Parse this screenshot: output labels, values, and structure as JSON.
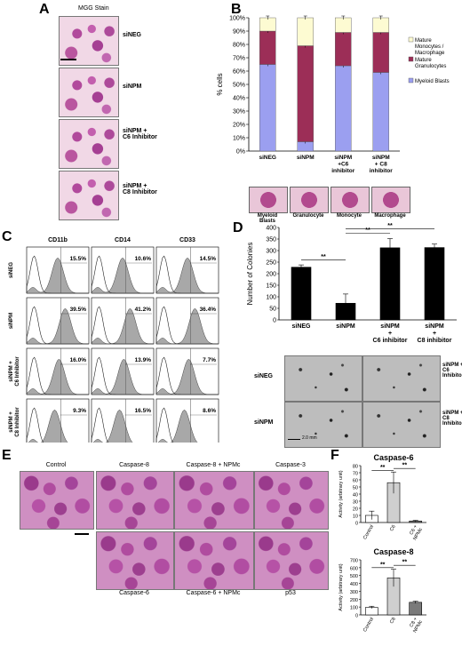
{
  "panelA": {
    "label": "A",
    "title": "MGG Stain",
    "rows": [
      "siNEG",
      "siNPM",
      "siNPM +\nC6 Inhibitor",
      "siNPM +\nC8 Inhibitor"
    ]
  },
  "panelB": {
    "label": "B",
    "thumbs": [
      "Myeloid\nBlasts",
      "Granulocyte",
      "Monocyte",
      "Macrophage"
    ]
  },
  "panelC": {
    "label": "C",
    "columns": [
      "CD11b",
      "CD14",
      "CD33"
    ],
    "rows": [
      "siNEG",
      "siNPM",
      "siNPM +\nC6 Inhibitor",
      "siNPM +\nC8 Inhibitor"
    ],
    "percents": [
      [
        "15.5%",
        "10.6%",
        "14.5%"
      ],
      [
        "39.5%",
        "41.2%",
        "36.4%"
      ],
      [
        "16.0%",
        "13.9%",
        "7.7%"
      ],
      [
        "9.3%",
        "16.5%",
        "8.6%"
      ]
    ]
  },
  "panelD": {
    "label": "D",
    "img_labels": [
      "siNEG",
      "siNPM",
      "siNPM +\nC6\nInhibitor",
      "siNPM +\nC8\nInhibitor"
    ],
    "scale": "2.0 mm"
  },
  "panelE": {
    "label": "E",
    "top": [
      "Control",
      "Caspase-8",
      "Caspase-8 + NPMc",
      "Caspase-3"
    ],
    "bottom": [
      "Caspase-6",
      "Caspase-6 + NPMc",
      "p53"
    ]
  },
  "panelF": {
    "label": "F"
  },
  "chart_data": [
    {
      "type": "bar",
      "panel": "B",
      "ylabel": "% cells",
      "yticks": [
        "0%",
        "10%",
        "20%",
        "30%",
        "40%",
        "50%",
        "60%",
        "70%",
        "80%",
        "90%",
        "100%"
      ],
      "ylim": [
        0,
        100
      ],
      "categories": [
        "siNEG",
        "siNPM",
        "siNPM\n+C6\ninhibitor",
        "siNPM\n+ C8\ninhibitor"
      ],
      "stacked": true,
      "series": [
        {
          "name": "Myeloid Blasts",
          "color": "#9b9ff0",
          "values": [
            65,
            7,
            64,
            59
          ]
        },
        {
          "name": "Mature Granulocytes",
          "color": "#9c2e57",
          "values": [
            25,
            72,
            25,
            30
          ]
        },
        {
          "name": "Mature Monocytes / Macrophage",
          "color": "#fdfbd2",
          "values": [
            10,
            21,
            11,
            11
          ]
        }
      ],
      "legend": "right"
    },
    {
      "type": "bar",
      "panel": "D",
      "ylabel": "Number of Colonies",
      "yticks": [
        "0",
        "50",
        "100",
        "150",
        "200",
        "250",
        "300",
        "350",
        "400"
      ],
      "ylim": [
        0,
        400
      ],
      "categories": [
        "siNEG",
        "siNPM",
        "siNPM\n+\nC6 inhibitor",
        "siNPM\n+\nC8 inhibitor"
      ],
      "values": [
        228,
        72,
        312,
        313
      ],
      "errors": [
        10,
        40,
        40,
        15
      ],
      "color": "#000000",
      "significance": [
        "**",
        "**",
        "**"
      ]
    },
    {
      "type": "bar",
      "panel": "F",
      "title": "Caspase-6",
      "ylabel": "Activity (arbitrary unit)",
      "yticks": [
        "0",
        "10",
        "20",
        "30",
        "40",
        "50",
        "60",
        "70",
        "80"
      ],
      "ylim": [
        0,
        80
      ],
      "categories": [
        "Control",
        "C6",
        "C6 +\nNPMc"
      ],
      "values": [
        10,
        56,
        2
      ],
      "errors": [
        6,
        15,
        1
      ],
      "colors": [
        "#ffffff",
        "#cfcfcf",
        "#7a7a7a"
      ],
      "significance": [
        "**",
        "**"
      ]
    },
    {
      "type": "bar",
      "panel": "F",
      "title": "Caspase-8",
      "ylabel": "Activity (arbitrary unit)",
      "yticks": [
        "0",
        "100",
        "200",
        "300",
        "400",
        "500",
        "600",
        "700"
      ],
      "ylim": [
        0,
        700
      ],
      "categories": [
        "Control",
        "C8",
        "C8 +\nNPMc"
      ],
      "values": [
        95,
        470,
        160
      ],
      "errors": [
        15,
        110,
        15
      ],
      "colors": [
        "#ffffff",
        "#cfcfcf",
        "#7a7a7a"
      ],
      "significance": [
        "**",
        "**"
      ]
    }
  ]
}
